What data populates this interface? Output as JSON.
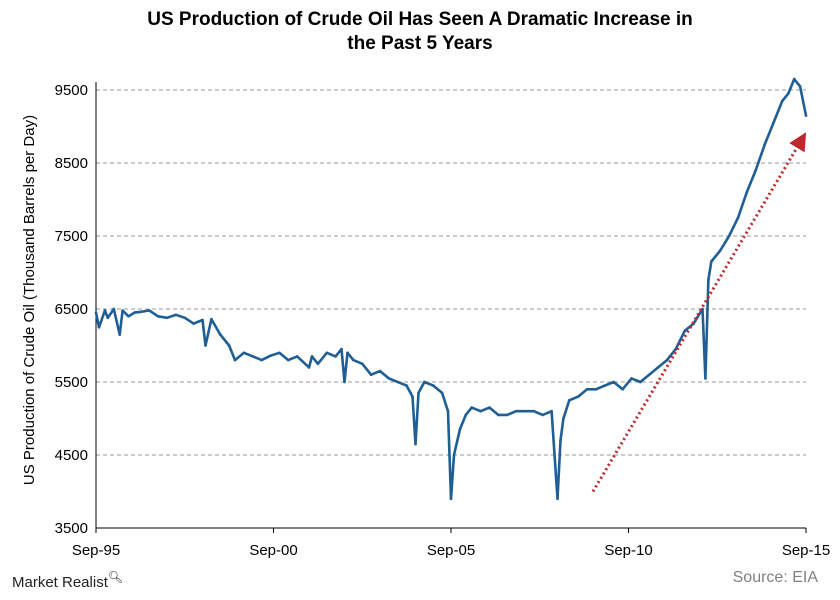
{
  "chart_data": {
    "type": "line",
    "title_lines": [
      "US Production  of Crude Oil Has Seen A Dramatic Increase  in",
      "the Past 5 Years"
    ],
    "ylabel": "US Production of Crude Oil  (Thousand Barrels per Day)",
    "xlabel": "",
    "ylim": [
      3500,
      9500
    ],
    "y_ticks": [
      3500,
      4500,
      5500,
      6500,
      7500,
      8500,
      9500
    ],
    "x_ticks": [
      "Sep-95",
      "Sep-00",
      "Sep-05",
      "Sep-10",
      "Sep-15"
    ],
    "x_range": [
      "1995-09",
      "2015-09"
    ],
    "grid": "horizontal dashed",
    "legend": "none",
    "line_color": "#1f5f95",
    "trend_arrow_color": "#c0272d",
    "series": [
      {
        "x": [
          "1995-09",
          "1995-10",
          "1995-12",
          "1996-01",
          "1996-03",
          "1996-05",
          "1996-06",
          "1996-08",
          "1996-10",
          "1996-12",
          "1997-03",
          "1997-06",
          "1997-09",
          "1997-12",
          "1998-03",
          "1998-06",
          "1998-09",
          "1998-10",
          "1998-12",
          "1999-03",
          "1999-06",
          "1999-08",
          "1999-11",
          "2000-02",
          "2000-05",
          "2000-08",
          "2000-11",
          "2001-02",
          "2001-05",
          "2001-09",
          "2001-10",
          "2001-12",
          "2002-03",
          "2002-06",
          "2002-08",
          "2002-09",
          "2002-10",
          "2002-12",
          "2003-03",
          "2003-06",
          "2003-09",
          "2003-12",
          "2004-03",
          "2004-06",
          "2004-08",
          "2004-09",
          "2004-10",
          "2004-12",
          "2005-03",
          "2005-06",
          "2005-08",
          "2005-09",
          "2005-10",
          "2005-12",
          "2006-02",
          "2006-04",
          "2006-07",
          "2006-10",
          "2007-01",
          "2007-04",
          "2007-07",
          "2007-10",
          "2008-01",
          "2008-04",
          "2008-07",
          "2008-09",
          "2008-10",
          "2008-11",
          "2009-01",
          "2009-04",
          "2009-07",
          "2009-10",
          "2010-01",
          "2010-04",
          "2010-07",
          "2010-10",
          "2011-01",
          "2011-04",
          "2011-07",
          "2011-10",
          "2012-01",
          "2012-04",
          "2012-07",
          "2012-10",
          "2012-11",
          "2012-12",
          "2013-01",
          "2013-04",
          "2013-07",
          "2013-10",
          "2014-01",
          "2014-04",
          "2014-07",
          "2014-10",
          "2015-01",
          "2015-03",
          "2015-05",
          "2015-07",
          "2015-09"
        ],
        "values": [
          6450,
          6250,
          6480,
          6380,
          6500,
          6150,
          6480,
          6400,
          6450,
          6460,
          6480,
          6400,
          6380,
          6420,
          6380,
          6300,
          6350,
          6000,
          6360,
          6150,
          6000,
          5800,
          5900,
          5850,
          5800,
          5860,
          5900,
          5800,
          5850,
          5700,
          5850,
          5750,
          5900,
          5850,
          5950,
          5500,
          5900,
          5800,
          5750,
          5600,
          5650,
          5550,
          5500,
          5450,
          5300,
          4650,
          5350,
          5500,
          5450,
          5350,
          5100,
          3900,
          4500,
          4850,
          5050,
          5150,
          5100,
          5150,
          5050,
          5050,
          5100,
          5100,
          5100,
          5050,
          5100,
          3900,
          4700,
          5000,
          5250,
          5300,
          5400,
          5400,
          5450,
          5500,
          5400,
          5550,
          5500,
          5600,
          5700,
          5800,
          5950,
          6200,
          6300,
          6500,
          5550,
          6900,
          7150,
          7300,
          7500,
          7750,
          8100,
          8400,
          8750,
          9050,
          9350,
          9450,
          9650,
          9550,
          9150
        ]
      }
    ],
    "trend_arrow": {
      "from": [
        "2009-09",
        4000
      ],
      "to": [
        "2015-09",
        8850
      ]
    }
  },
  "footer": {
    "brand": "Market Realist",
    "brand_icon": "magnifier-icon",
    "source": "Source: EIA"
  }
}
